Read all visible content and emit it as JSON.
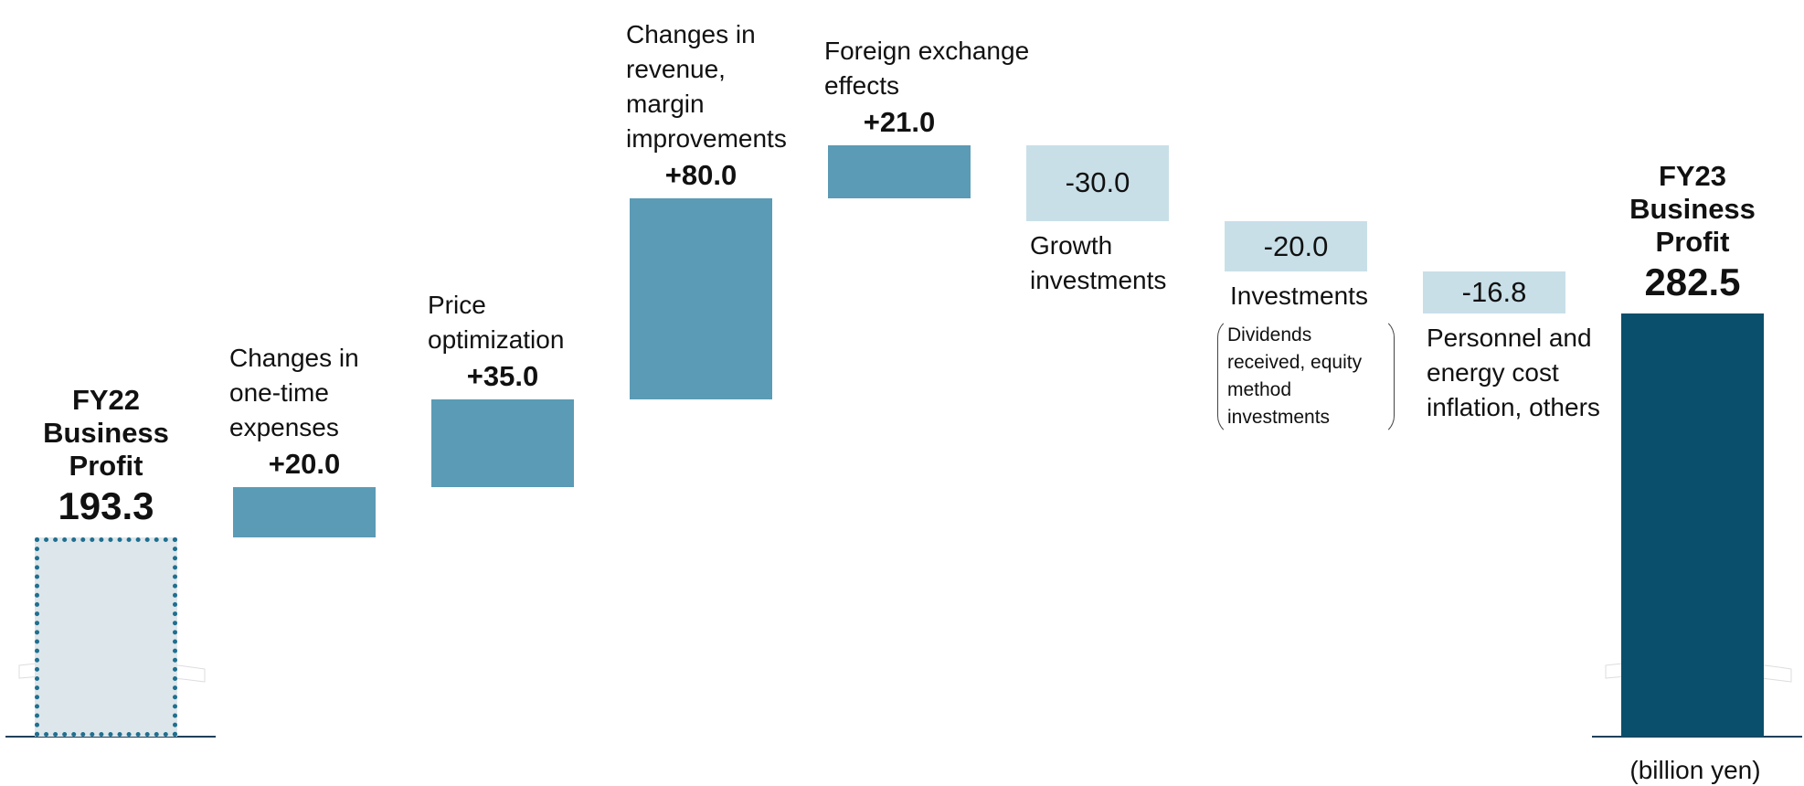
{
  "chart_data": {
    "type": "waterfall",
    "categories": [
      "FY22 Business Profit",
      "Changes in one-time expenses",
      "Price optimization",
      "Changes in revenue, margin improvements",
      "Foreign exchange effects",
      "Growth investments",
      "Investments",
      "Personnel and energy cost inflation, others",
      "FY23 Business Profit"
    ],
    "values": [
      193.3,
      20,
      35,
      80,
      21,
      -30,
      -20,
      -16.8,
      282.5
    ],
    "value_labels": [
      "193.3",
      "+20.0",
      "+35.0",
      "+80.0",
      "+21.0",
      "-30.0",
      "-20.0",
      "-16.8",
      "282.5"
    ],
    "colors": {
      "start": "#dde6ea",
      "increase": "#5b9bb5",
      "decrease": "#c8dfe8",
      "total": "#0a4f6b"
    },
    "annotation": "Dividends received, equity method investments",
    "unit_note": "(billion yen)"
  }
}
